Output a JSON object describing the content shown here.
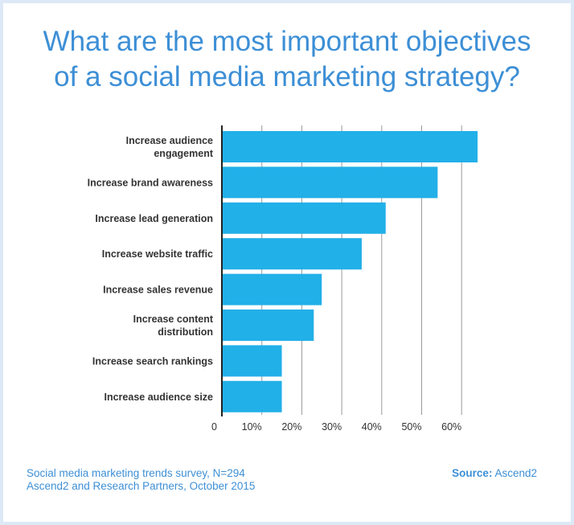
{
  "title": {
    "line1": "What are the most important objectives",
    "line2": "of a social media marketing strategy?"
  },
  "chart_data": {
    "type": "bar",
    "orientation": "horizontal",
    "categories": [
      [
        "Increase audience",
        "engagement"
      ],
      [
        "Increase brand awareness"
      ],
      [
        "Increase lead generation"
      ],
      [
        "Increase website traffic"
      ],
      [
        "Increase sales revenue"
      ],
      [
        "Increase content",
        "distribution"
      ],
      [
        "Increase search rankings"
      ],
      [
        "Increase audience size"
      ]
    ],
    "values": [
      64,
      54,
      41,
      35,
      25,
      23,
      15,
      15
    ],
    "xlim": [
      0,
      65
    ],
    "xticks": [
      {
        "value": 0,
        "label": "0"
      },
      {
        "value": 10,
        "label": "10%"
      },
      {
        "value": 20,
        "label": "20%"
      },
      {
        "value": 30,
        "label": "30%"
      },
      {
        "value": 40,
        "label": "40%"
      },
      {
        "value": 50,
        "label": "50%"
      },
      {
        "value": 60,
        "label": "60%"
      }
    ],
    "grid": "vertical",
    "bar_color": "#22b0e8",
    "grid_color": "#9a9a9a"
  },
  "footer": {
    "survey_line1": "Social media marketing trends survey, N=294",
    "survey_line2": "Ascend2 and Research Partners, October 2015",
    "source_label": "Source:",
    "source_value": "Ascend2"
  },
  "colors": {
    "background": "#dde9f6",
    "card": "#ffffff",
    "accent": "#3d8fd6",
    "label_text": "#333333"
  }
}
